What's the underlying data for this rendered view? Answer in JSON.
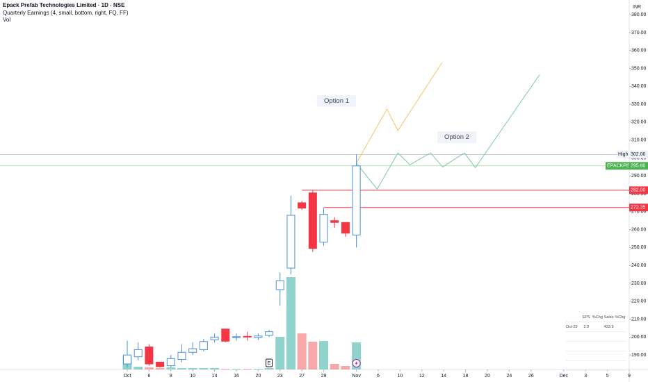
{
  "chart_data": {
    "type": "candlestick",
    "title": "Epack Prefab Technologies Limited · 1D · NSE",
    "indicator": "Quarterly Earnings (4, small, bottom, right, FQ, FF)",
    "volume_label": "Vol",
    "currency": "INR",
    "open": [
      185,
      189,
      194.5,
      186,
      184,
      187.5,
      191.5,
      193,
      198.5,
      204.5,
      200,
      200.4,
      199.8,
      201,
      226.5,
      238.5,
      275,
      280.5,
      253,
      265,
      264,
      257
    ],
    "high": [
      198,
      197,
      196,
      186,
      190,
      196,
      197,
      199,
      202,
      204.5,
      202,
      203,
      202,
      204,
      236,
      279,
      276,
      282,
      272,
      267,
      264,
      302
    ],
    "low": [
      183,
      187,
      184,
      183,
      183,
      186,
      190,
      192,
      197,
      197,
      198,
      198,
      198.5,
      200,
      217.5,
      235,
      271,
      247.5,
      251,
      261,
      256,
      250
    ],
    "close": [
      190,
      193,
      185,
      183.5,
      188,
      191.5,
      193.5,
      197.5,
      200,
      197.7,
      200.2,
      200.2,
      200.6,
      203,
      231.5,
      268,
      272,
      249.5,
      268.5,
      264,
      258,
      295.6
    ],
    "volume": [
      20,
      4,
      3,
      2,
      3,
      2,
      2,
      2,
      2,
      1,
      1,
      1,
      1,
      2,
      47,
      133,
      52,
      40,
      41,
      8,
      5,
      39
    ],
    "volume_lim": [
      0,
      150
    ],
    "up_color": "#4a90d9",
    "down_color": "#f23645",
    "vol_up_color": "#8fd3cc",
    "vol_down_color": "#f7a9a9",
    "xlim": [
      -11.66,
      46
    ],
    "xticks": [
      {
        "value": 0,
        "label": "Oct"
      },
      {
        "value": 2,
        "label": "6"
      },
      {
        "value": 4,
        "label": "8"
      },
      {
        "value": 6,
        "label": "10"
      },
      {
        "value": 8,
        "label": "14"
      },
      {
        "value": 10,
        "label": "16"
      },
      {
        "value": 12,
        "label": "20"
      },
      {
        "value": 14,
        "label": "23"
      },
      {
        "value": 16,
        "label": "27"
      },
      {
        "value": 18,
        "label": "29"
      },
      {
        "value": 21,
        "label": "Nov"
      },
      {
        "value": 23,
        "label": "6"
      },
      {
        "value": 25,
        "label": "10"
      },
      {
        "value": 27,
        "label": "12"
      },
      {
        "value": 29,
        "label": "14"
      },
      {
        "value": 31,
        "label": "18"
      },
      {
        "value": 33,
        "label": "20"
      },
      {
        "value": 35,
        "label": "24"
      },
      {
        "value": 37,
        "label": "26"
      },
      {
        "value": 40,
        "label": "Dec"
      },
      {
        "value": 42,
        "label": "3"
      },
      {
        "value": 44,
        "label": "5"
      },
      {
        "value": 46,
        "label": "9"
      }
    ],
    "ylim": [
      181.9,
      388.2
    ],
    "yticks": [
      {
        "value": 190,
        "label": "190.00"
      },
      {
        "value": 200,
        "label": "200.00"
      },
      {
        "value": 210,
        "label": "210.00"
      },
      {
        "value": 220,
        "label": "220.00"
      },
      {
        "value": 230,
        "label": "230.00"
      },
      {
        "value": 240,
        "label": "240.00"
      },
      {
        "value": 250,
        "label": "250.00"
      },
      {
        "value": 260,
        "label": "260.00"
      },
      {
        "value": 270,
        "label": "270.00"
      },
      {
        "value": 280,
        "label": "280.00"
      },
      {
        "value": 290,
        "label": "290.00"
      },
      {
        "value": 300,
        "label": "300.00"
      },
      {
        "value": 310,
        "label": "310.00"
      },
      {
        "value": 320,
        "label": "320.00"
      },
      {
        "value": 330,
        "label": "330.00"
      },
      {
        "value": 340,
        "label": "340.00"
      },
      {
        "value": 350,
        "label": "350.00"
      },
      {
        "value": 360,
        "label": "360.00"
      },
      {
        "value": 370,
        "label": "370.00"
      },
      {
        "value": 380,
        "label": "380.00"
      }
    ],
    "levels": [
      {
        "value": 282,
        "label": "282.00",
        "color": "#f23645",
        "start": 16
      },
      {
        "value": 272.35,
        "label": "272.35",
        "color": "#f23645",
        "start": 18
      }
    ],
    "high_line": {
      "value": 302,
      "label": "302.00",
      "name": "High",
      "color": "#b2b5be"
    },
    "last_price": {
      "value": 295.6,
      "label": "295.60",
      "name": "EPACKPER",
      "color": "#4caf50"
    },
    "projections": [
      {
        "name": "Option 1",
        "color": "#f5c36b",
        "x": [
          21,
          23.8,
          24.8,
          28.85
        ],
        "y": [
          297.1,
          327.3,
          315.3,
          353.3
        ]
      },
      {
        "name": "Option 2",
        "color": "#7cc9a8",
        "x": [
          21,
          22.9,
          24.8,
          25.9,
          27.8,
          28.9,
          30.9,
          31.9,
          37.8
        ],
        "y": [
          297.1,
          282.6,
          302.8,
          296.2,
          302.8,
          295,
          302.8,
          294.6,
          346.6
        ]
      }
    ],
    "earnings_marker": "E",
    "earnings_marker_x": 13,
    "earnings_table": {
      "headers": [
        "EPS",
        "%Chg",
        "Sales",
        "%Chg"
      ],
      "rows": [
        {
          "period": "Oct-25",
          "eps": "2.9",
          "sales": "433.9"
        }
      ]
    }
  }
}
